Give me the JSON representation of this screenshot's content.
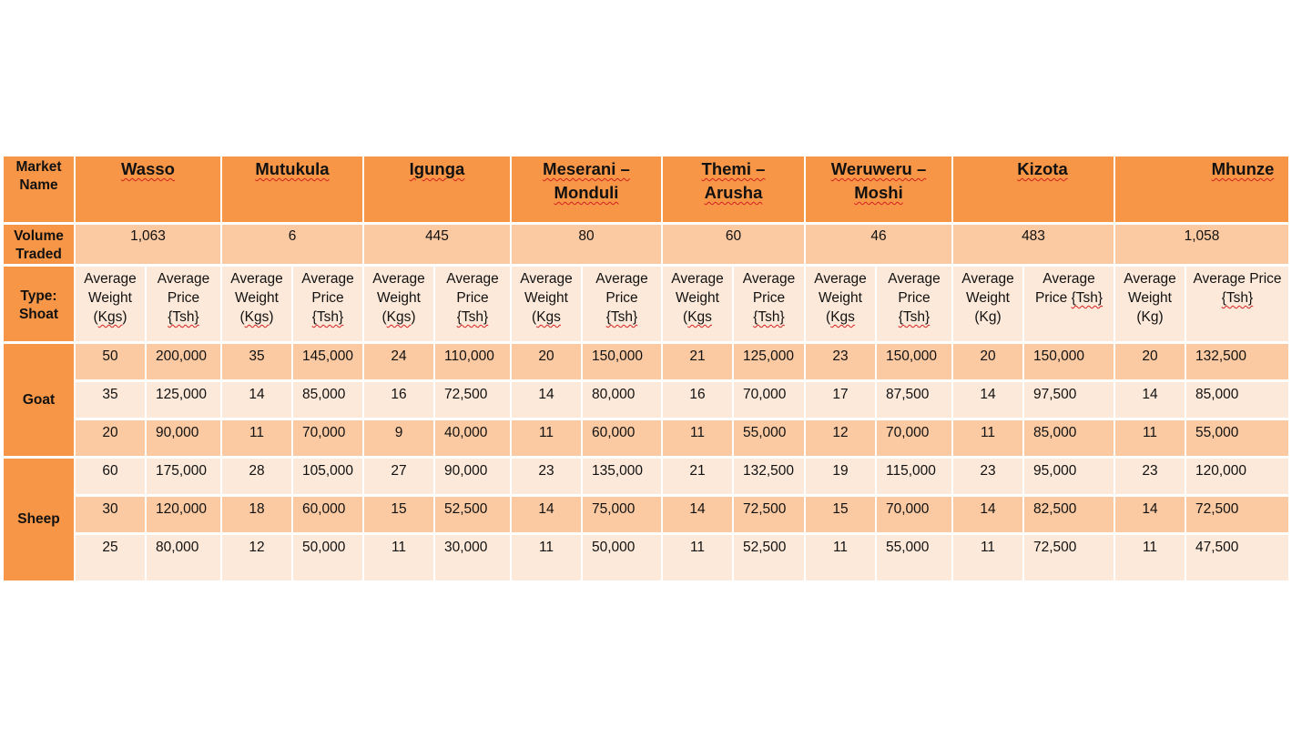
{
  "table": {
    "corner": {
      "line1": "Market",
      "line2": "Name"
    },
    "markets": [
      {
        "line1": "Wasso",
        "line2": ""
      },
      {
        "line1": "Mutukula",
        "line2": ""
      },
      {
        "line1": "Igunga",
        "line2": ""
      },
      {
        "line1": "Meserani –",
        "line2": "Monduli"
      },
      {
        "line1": "Themi –",
        "line2": "Arusha"
      },
      {
        "line1": "Weruweru –",
        "line2": "Moshi"
      },
      {
        "line1": "Kizota",
        "line2": ""
      },
      {
        "line1": "Mhunze",
        "line2": ""
      }
    ],
    "volume_label": {
      "line1": "Volume",
      "line2": "Traded"
    },
    "volumes": [
      "1,063",
      "6",
      "445",
      "80",
      "60",
      "46",
      "483",
      "1,058"
    ],
    "type_label": {
      "line1": "Type:",
      "line2": "Shoat"
    },
    "subheaders": [
      {
        "w": [
          "Average",
          "Weight",
          "(Kgs)"
        ],
        "p": [
          "Average",
          "Price",
          "{Tsh}"
        ]
      },
      {
        "w": [
          "Average",
          "Weight",
          "(Kgs)"
        ],
        "p": [
          "Average",
          "Price",
          "{Tsh}"
        ]
      },
      {
        "w": [
          "Average",
          "Weight",
          "(Kgs)"
        ],
        "p": [
          "Average",
          "Price",
          "{Tsh}"
        ]
      },
      {
        "w": [
          "Average",
          "Weight",
          "(Kgs"
        ],
        "p": [
          "Average",
          "Price",
          "{Tsh}"
        ]
      },
      {
        "w": [
          "Average",
          "Weight",
          "(Kgs"
        ],
        "p": [
          "Average",
          "Price",
          "{Tsh}"
        ]
      },
      {
        "w": [
          "Average",
          "Weight",
          "(Kgs"
        ],
        "p": [
          "Average",
          "Price",
          "{Tsh}"
        ]
      },
      {
        "w": [
          "Average",
          "Weight",
          "(Kg)"
        ],
        "p": [
          "Average",
          "Price {Tsh}",
          ""
        ]
      },
      {
        "w": [
          "Average",
          "Weight",
          "(Kg)"
        ],
        "p": [
          "Average Price",
          "{Tsh}",
          ""
        ]
      }
    ],
    "categories": [
      {
        "name": "Goat",
        "rows": [
          [
            [
              "50",
              "200,000"
            ],
            [
              "35",
              "145,000"
            ],
            [
              "24",
              "110,000"
            ],
            [
              "20",
              "150,000"
            ],
            [
              "21",
              "125,000"
            ],
            [
              "23",
              "150,000"
            ],
            [
              "20",
              "150,000"
            ],
            [
              "20",
              "132,500"
            ]
          ],
          [
            [
              "35",
              "125,000"
            ],
            [
              "14",
              "85,000"
            ],
            [
              "16",
              "72,500"
            ],
            [
              "14",
              "80,000"
            ],
            [
              "16",
              "70,000"
            ],
            [
              "17",
              "87,500"
            ],
            [
              "14",
              "97,500"
            ],
            [
              "14",
              "85,000"
            ]
          ],
          [
            [
              "20",
              "90,000"
            ],
            [
              "11",
              "70,000"
            ],
            [
              "9",
              "40,000"
            ],
            [
              "11",
              "60,000"
            ],
            [
              "11",
              "55,000"
            ],
            [
              "12",
              "70,000"
            ],
            [
              "11",
              "85,000"
            ],
            [
              "11",
              "55,000"
            ]
          ]
        ]
      },
      {
        "name": "Sheep",
        "rows": [
          [
            [
              "60",
              "175,000"
            ],
            [
              "28",
              "105,000"
            ],
            [
              "27",
              "90,000"
            ],
            [
              "23",
              "135,000"
            ],
            [
              "21",
              "132,500"
            ],
            [
              "19",
              "115,000"
            ],
            [
              "23",
              "95,000"
            ],
            [
              "23",
              "120,000"
            ]
          ],
          [
            [
              "30",
              "120,000"
            ],
            [
              "18",
              "60,000"
            ],
            [
              "15",
              "52,500"
            ],
            [
              "14",
              "75,000"
            ],
            [
              "14",
              "72,500"
            ],
            [
              "15",
              "70,000"
            ],
            [
              "14",
              "82,500"
            ],
            [
              "14",
              "72,500"
            ]
          ],
          [
            [
              "25",
              "80,000"
            ],
            [
              "12",
              "50,000"
            ],
            [
              "11",
              "30,000"
            ],
            [
              "11",
              "50,000"
            ],
            [
              "11",
              "52,500"
            ],
            [
              "11",
              "55,000"
            ],
            [
              "11",
              "72,500"
            ],
            [
              "11",
              "47,500"
            ]
          ]
        ]
      }
    ],
    "colors": {
      "header_orange": "#f79646",
      "band_dark": "#fbcaa2",
      "band_light": "#fde9d9",
      "spell_underline": "#d42020"
    }
  }
}
